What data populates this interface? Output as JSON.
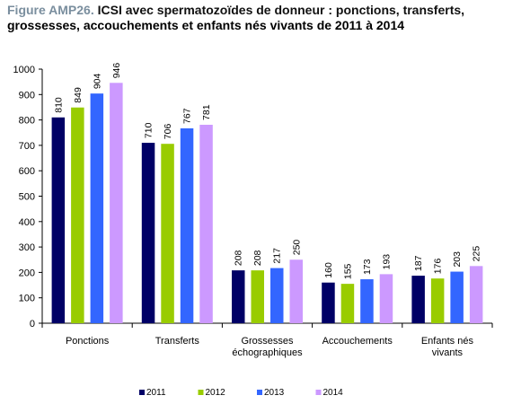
{
  "figure": {
    "prefix": "Figure AMP26.",
    "title_line1": "ICSI avec spermatozoïdes de donneur : ponctions, transferts,",
    "title_line2": "grossesses, accouchements et enfants nés vivants de 2011 à 2014"
  },
  "chart_data": {
    "type": "bar",
    "categories": [
      [
        "Ponctions"
      ],
      [
        "Transferts"
      ],
      [
        "Grossesses",
        "échographiques"
      ],
      [
        "Accouchements"
      ],
      [
        "Enfants nés",
        "vivants"
      ]
    ],
    "series": [
      {
        "name": "2011",
        "color": "#000066",
        "values": [
          810,
          710,
          208,
          160,
          187
        ]
      },
      {
        "name": "2012",
        "color": "#99cc00",
        "values": [
          849,
          706,
          208,
          155,
          176
        ]
      },
      {
        "name": "2013",
        "color": "#3366ff",
        "values": [
          904,
          767,
          217,
          173,
          203
        ]
      },
      {
        "name": "2014",
        "color": "#cc99ff",
        "values": [
          946,
          781,
          250,
          193,
          225
        ]
      }
    ],
    "ylim": [
      0,
      1000
    ],
    "yticks": [
      0,
      100,
      200,
      300,
      400,
      500,
      600,
      700,
      800,
      900,
      1000
    ],
    "grid": false,
    "legend_position": "bottom"
  }
}
